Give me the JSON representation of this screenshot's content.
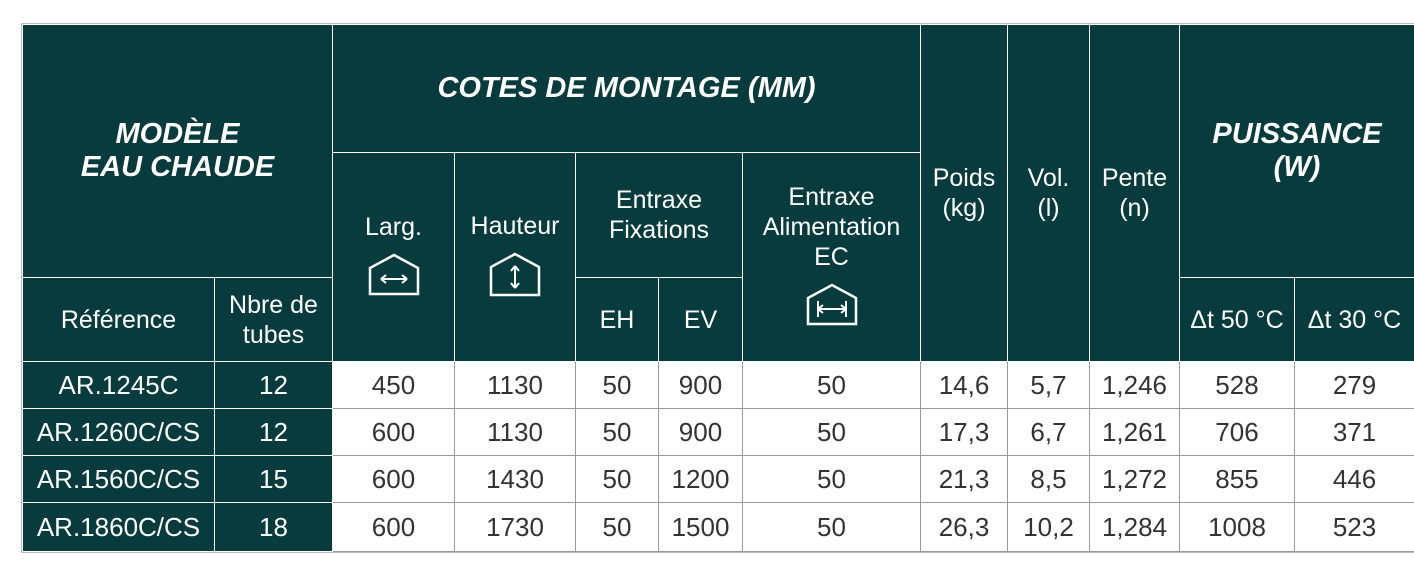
{
  "header": {
    "modele": "MODÈLE\nEAU CHAUDE",
    "cotes": "COTES DE MONTAGE (MM)",
    "larg": "Larg.",
    "hauteur": "Hauteur",
    "entraxe_fix": "Entraxe\nFixations",
    "entraxe_alim": "Entraxe\nAlimentation\nEC",
    "poids": "Poids\n(kg)",
    "vol": "Vol.\n(l)",
    "pente": "Pente\n(n)",
    "puissance": "PUISSANCE\n(W)",
    "reference": "Référence",
    "nbre": "Nbre de\ntubes",
    "eh": "EH",
    "ev": "EV",
    "dt50": "Δt 50 °C",
    "dt30": "Δt 30 °C"
  },
  "icons": {
    "larg": "width-arrows-icon",
    "hauteur": "height-arrows-icon",
    "alim": "supply-spacing-icon"
  },
  "rows": [
    {
      "ref": "AR.1245C",
      "tubes": "12",
      "larg": "450",
      "hauteur": "1130",
      "eh": "50",
      "ev": "900",
      "alim": "50",
      "poids": "14,6",
      "vol": "5,7",
      "pente": "1,246",
      "p50": "528",
      "p30": "279"
    },
    {
      "ref": "AR.1260C/CS",
      "tubes": "12",
      "larg": "600",
      "hauteur": "1130",
      "eh": "50",
      "ev": "900",
      "alim": "50",
      "poids": "17,3",
      "vol": "6,7",
      "pente": "1,261",
      "p50": "706",
      "p30": "371"
    },
    {
      "ref": "AR.1560C/CS",
      "tubes": "15",
      "larg": "600",
      "hauteur": "1430",
      "eh": "50",
      "ev": "1200",
      "alim": "50",
      "poids": "21,3",
      "vol": "8,5",
      "pente": "1,272",
      "p50": "855",
      "p30": "446"
    },
    {
      "ref": "AR.1860C/CS",
      "tubes": "18",
      "larg": "600",
      "hauteur": "1730",
      "eh": "50",
      "ev": "1500",
      "alim": "50",
      "poids": "26,3",
      "vol": "10,2",
      "pente": "1,284",
      "p50": "1008",
      "p30": "523"
    }
  ],
  "colors": {
    "header_bg": "#073b3d",
    "header_text": "#ffffff",
    "value_text": "#333333"
  }
}
